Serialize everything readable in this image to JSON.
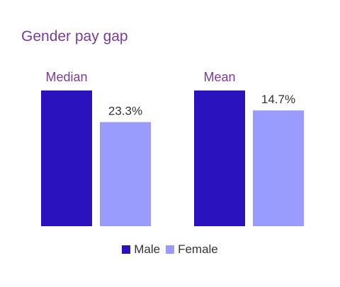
{
  "chart_data": {
    "type": "bar",
    "title": "Gender pay gap",
    "categories": [
      "Median",
      "Mean"
    ],
    "series": [
      {
        "name": "Male",
        "values": [
          100,
          100
        ]
      },
      {
        "name": "Female",
        "values": [
          76.7,
          85.3
        ]
      }
    ],
    "data_labels": {
      "Female": [
        "23.3%",
        "14.7%"
      ]
    },
    "ylim": [
      0,
      100
    ],
    "grid": false,
    "legend": "bottom-center",
    "colors": {
      "Male": "#2a12be",
      "Female": "#9a9cfd"
    },
    "text_color": "#333333",
    "title_color": "#7a3a9a",
    "category_color": "#7a3a9a"
  }
}
